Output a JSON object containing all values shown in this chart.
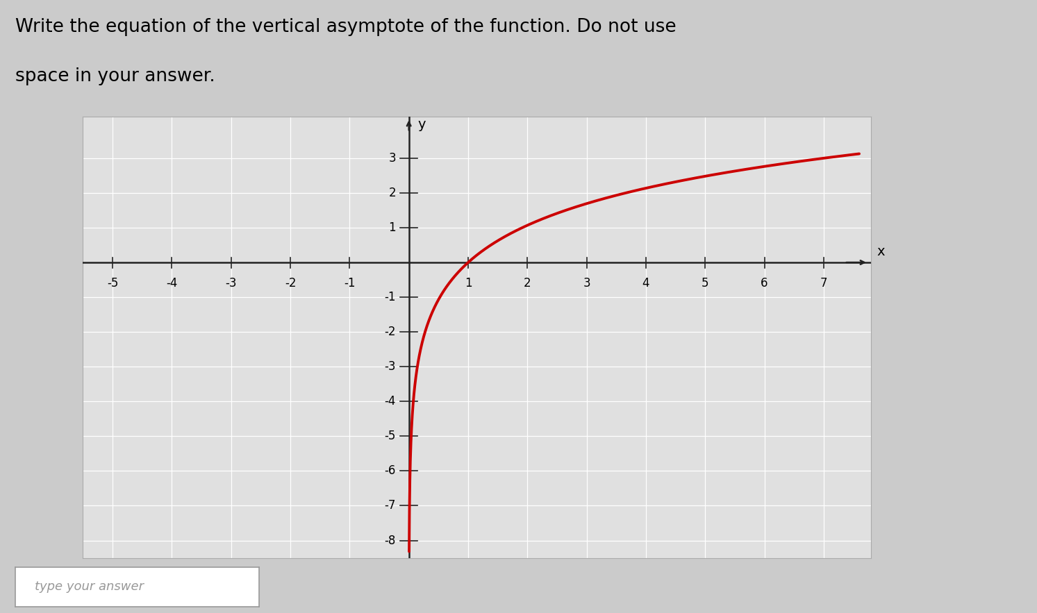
{
  "title_line1": "Write the equation of the vertical asymptote of the function. Do not use",
  "title_line2": "space in your answer.",
  "title_fontsize": 19,
  "bg_color": "#cbcbcb",
  "plot_bg_color": "#e0e0e0",
  "grid_color": "#ffffff",
  "axis_color": "#222222",
  "curve_color": "#cc0000",
  "curve_linewidth": 2.8,
  "xlim": [
    -5.5,
    7.8
  ],
  "ylim": [
    -8.5,
    4.2
  ],
  "xticks": [
    -5,
    -4,
    -3,
    -2,
    -1,
    1,
    2,
    3,
    4,
    5,
    6,
    7
  ],
  "yticks": [
    -8,
    -7,
    -6,
    -5,
    -4,
    -3,
    -2,
    -1,
    1,
    2,
    3
  ],
  "xlabel": "x",
  "ylabel": "y",
  "answer_box_text": "type your answer",
  "tick_fontsize": 12,
  "label_fontsize": 14
}
